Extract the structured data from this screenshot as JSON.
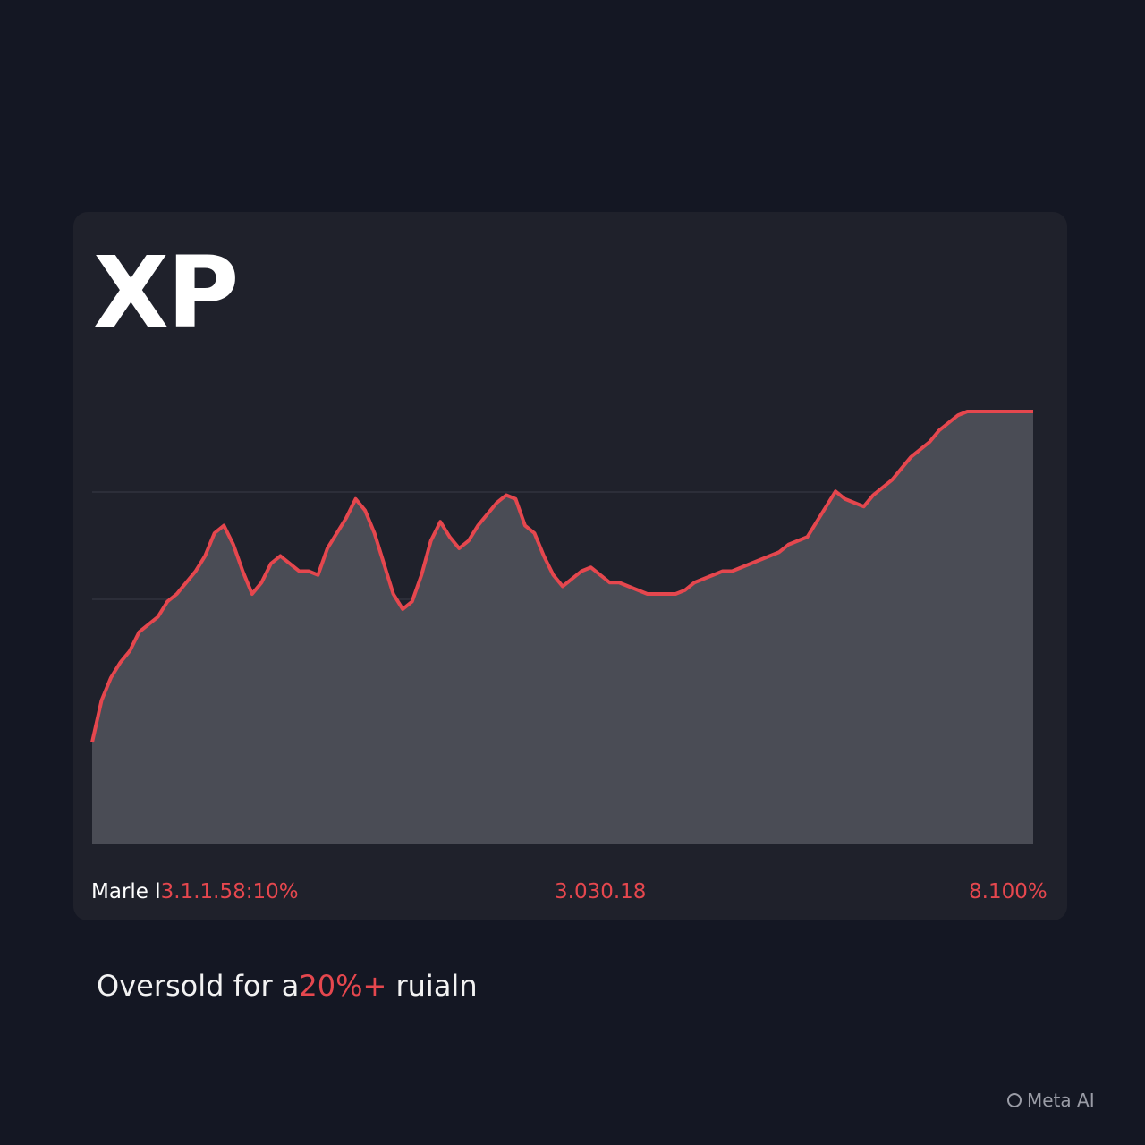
{
  "header": {
    "ticker": "XP"
  },
  "colors": {
    "background": "#141723",
    "card": "#1f212b",
    "area_fill": "#4a4c55",
    "line": "#e5474e",
    "gridline": "#3a3c47",
    "accent_text": "#e5474e"
  },
  "footer": {
    "left_label": "Marle l",
    "left_value": "3.1.1.58:10%",
    "middle_value": "3.030.18",
    "right_value": "8.100%"
  },
  "caption": {
    "prefix": "Oversold  for a",
    "highlight": "20%+",
    "suffix": " ruialn"
  },
  "watermark": {
    "text": "Meta AI",
    "icon": "meta-ai-ring-icon"
  },
  "chart_data": {
    "type": "area",
    "title": "XP",
    "xlabel": "",
    "ylabel": "",
    "xlim": [
      0,
      100
    ],
    "ylim": [
      0,
      100
    ],
    "grid": "two horizontal gridlines",
    "legend": "none",
    "x": [
      0,
      1,
      2,
      3,
      4,
      5,
      6,
      7,
      8,
      9,
      10,
      11,
      12,
      13,
      14,
      15,
      16,
      17,
      18,
      19,
      20,
      21,
      22,
      23,
      24,
      25,
      26,
      27,
      28,
      29,
      30,
      31,
      32,
      33,
      34,
      35,
      36,
      37,
      38,
      39,
      40,
      41,
      42,
      43,
      44,
      45,
      46,
      47,
      48,
      49,
      50,
      51,
      52,
      53,
      54,
      55,
      56,
      57,
      58,
      59,
      60,
      61,
      62,
      63,
      64,
      65,
      66,
      67,
      68,
      69,
      70,
      71,
      72,
      73,
      74,
      75,
      76,
      77,
      78,
      79,
      80,
      81,
      82,
      83,
      84,
      85,
      86,
      87,
      88,
      89,
      90,
      91,
      92,
      93,
      94,
      95,
      96,
      97,
      98,
      99,
      100
    ],
    "series": [
      {
        "values": [
          13,
          24,
          30,
          34,
          37,
          42,
          44,
          46,
          50,
          52,
          55,
          58,
          62,
          68,
          70,
          65,
          58,
          52,
          55,
          60,
          62,
          60,
          58,
          58,
          57,
          64,
          68,
          72,
          77,
          74,
          68,
          60,
          52,
          48,
          50,
          57,
          66,
          71,
          67,
          64,
          66,
          70,
          73,
          76,
          78,
          77,
          70,
          68,
          62,
          57,
          54,
          56,
          58,
          59,
          57,
          55,
          55,
          54,
          53,
          52,
          52,
          52,
          52,
          53,
          55,
          56,
          57,
          58,
          58,
          59,
          60,
          61,
          62,
          63,
          65,
          66,
          67,
          71,
          75,
          79,
          77,
          76,
          75,
          78,
          80,
          82,
          85,
          88,
          90,
          92,
          95,
          97,
          99,
          100,
          100,
          100,
          100,
          100,
          100,
          100,
          100
        ]
      }
    ]
  }
}
